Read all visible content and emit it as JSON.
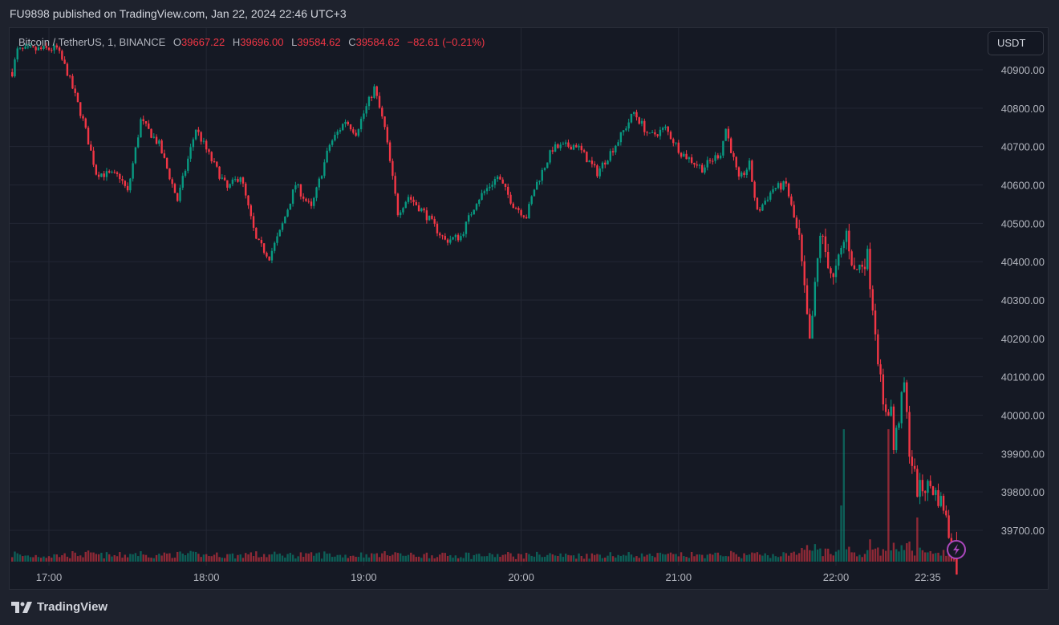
{
  "header": {
    "published": "FU9898 published on TradingView.com, Jan 22, 2024 22:46 UTC+3"
  },
  "legend": {
    "symbol": "Bitcoin / TetherUS, 1, BINANCE",
    "o_label": "O",
    "o": "39667.22",
    "h_label": "H",
    "h": "39696.00",
    "l_label": "L",
    "l": "39584.62",
    "c_label": "C",
    "c": "39584.62",
    "change": "−82.61 (−0.21%)"
  },
  "unit_button": "USDT",
  "footer": {
    "brand": "TradingView"
  },
  "colors": {
    "up": "#089981",
    "down": "#f23645",
    "background": "#151924",
    "grid": "#232734",
    "alert": "#ab47bc"
  },
  "chart_data": {
    "type": "candlestick",
    "title": "Bitcoin / TetherUS, 1, BINANCE",
    "interval_minutes": 1,
    "start_minute_from_17_00": -14,
    "end_minute_from_17_00": 346,
    "last_candle": {
      "open": 39667.22,
      "high": 39696.0,
      "low": 39584.62,
      "close": 39584.62
    },
    "price_path_keypoints": [
      [
        -14,
        40894
      ],
      [
        -12,
        40950
      ],
      [
        3,
        40955
      ],
      [
        7,
        40894
      ],
      [
        13,
        40768
      ],
      [
        18,
        40632
      ],
      [
        27,
        40622
      ],
      [
        30,
        40580
      ],
      [
        35,
        40768
      ],
      [
        42,
        40705
      ],
      [
        49,
        40560
      ],
      [
        56,
        40747
      ],
      [
        62,
        40664
      ],
      [
        68,
        40590
      ],
      [
        73,
        40625
      ],
      [
        79,
        40455
      ],
      [
        84,
        40413
      ],
      [
        88,
        40476
      ],
      [
        94,
        40601
      ],
      [
        100,
        40538
      ],
      [
        107,
        40705
      ],
      [
        113,
        40768
      ],
      [
        117,
        40737
      ],
      [
        124,
        40852
      ],
      [
        128,
        40747
      ],
      [
        133,
        40528
      ],
      [
        137,
        40570
      ],
      [
        143,
        40528
      ],
      [
        151,
        40455
      ],
      [
        157,
        40466
      ],
      [
        163,
        40559
      ],
      [
        171,
        40622
      ],
      [
        177,
        40549
      ],
      [
        182,
        40518
      ],
      [
        185,
        40590
      ],
      [
        192,
        40695
      ],
      [
        201,
        40705
      ],
      [
        209,
        40632
      ],
      [
        217,
        40716
      ],
      [
        223,
        40789
      ],
      [
        229,
        40726
      ],
      [
        235,
        40747
      ],
      [
        241,
        40684
      ],
      [
        249,
        40643
      ],
      [
        256,
        40684
      ],
      [
        258,
        40747
      ],
      [
        263,
        40611
      ],
      [
        267,
        40653
      ],
      [
        270,
        40528
      ],
      [
        276,
        40590
      ],
      [
        281,
        40601
      ],
      [
        286,
        40455
      ],
      [
        290,
        40183
      ],
      [
        294,
        40476
      ],
      [
        299,
        40350
      ],
      [
        304,
        40476
      ],
      [
        307,
        40371
      ],
      [
        312,
        40413
      ],
      [
        315,
        40225
      ],
      [
        318,
        40016
      ],
      [
        321,
        40016
      ],
      [
        322,
        39911
      ],
      [
        326,
        40079
      ],
      [
        328,
        39911
      ],
      [
        331,
        39806
      ],
      [
        336,
        39816
      ],
      [
        341,
        39764
      ],
      [
        346,
        39584.62
      ]
    ],
    "y_ticks": [
      "40900.00",
      "40800.00",
      "40700.00",
      "40600.00",
      "40500.00",
      "40400.00",
      "40300.00",
      "40200.00",
      "40100.00",
      "40000.00",
      "39900.00",
      "39800.00",
      "39700.00"
    ],
    "y_tick_values": [
      40900,
      40800,
      40700,
      40600,
      40500,
      40400,
      40300,
      40200,
      40100,
      40000,
      39900,
      39800,
      39700
    ],
    "x_ticks": [
      "17:00",
      "18:00",
      "19:00",
      "20:00",
      "21:00",
      "22:00",
      "22:35"
    ],
    "x_tick_minutes": [
      0,
      60,
      120,
      180,
      240,
      300,
      335
    ],
    "volume": "shown as bars at bottom of pane"
  }
}
